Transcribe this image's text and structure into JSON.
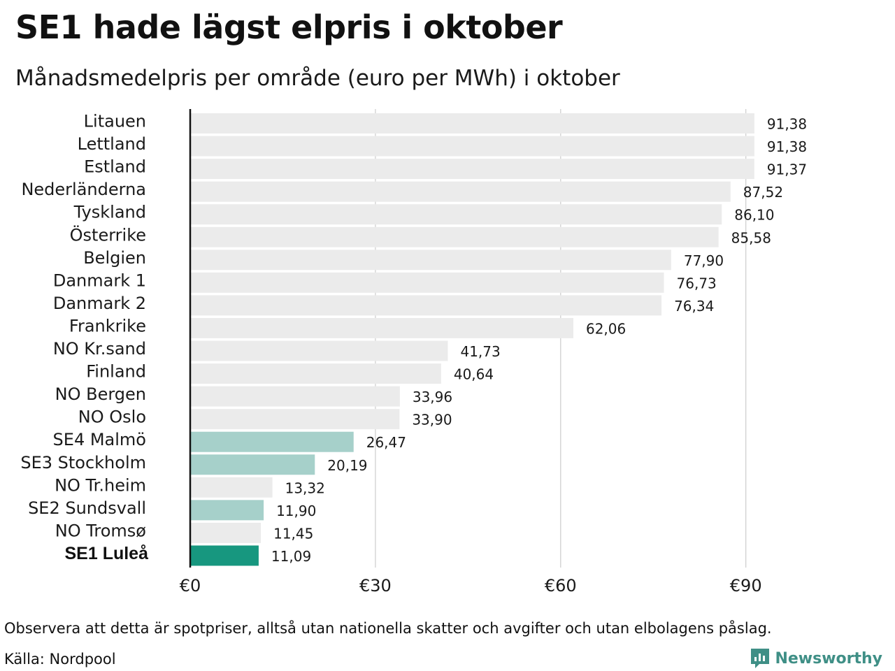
{
  "title": "SE1 hade lägst elpris i oktober",
  "subtitle": "Månadsmedelpris per område (euro per MWh) i oktober",
  "footnote": "Observera att detta är spotpriser, alltså utan nationella skatter och avgifter och utan elbolagens påslag.",
  "source": "Källa: Nordpool",
  "brand": {
    "name": "Newsworthy",
    "icon": "newsworthy-logo-icon",
    "color": "#3f8f86"
  },
  "colors": {
    "default_bar": "#ebebeb",
    "se_bar": "#a6d0ca",
    "highlight_bar": "#17977f",
    "axis": "#111111",
    "grid": "#cccccc"
  },
  "chart_data": {
    "type": "bar",
    "orientation": "horizontal",
    "title": "SE1 hade lägst elpris i oktober",
    "subtitle": "Månadsmedelpris per område (euro per MWh) i oktober",
    "xlim": [
      0,
      100
    ],
    "grid": true,
    "x_ticks": [
      {
        "value": 0,
        "label": "€0"
      },
      {
        "value": 30,
        "label": "€30"
      },
      {
        "value": 60,
        "label": "€60"
      },
      {
        "value": 90,
        "label": "€90"
      }
    ],
    "categories": [
      "Litauen",
      "Lettland",
      "Estland",
      "Nederländerna",
      "Tyskland",
      "Österrike",
      "Belgien",
      "Danmark  1",
      "Danmark  2",
      "Frankrike",
      "NO Kr.sand",
      "Finland",
      "NO Bergen",
      "NO Oslo",
      "SE4  Malmö",
      "SE3  Stockholm",
      "NO Tr.heim",
      "SE2  Sundsvall",
      "NO Tromsø",
      "SE1 Luleå"
    ],
    "values": [
      91.38,
      91.38,
      91.37,
      87.52,
      86.1,
      85.58,
      77.9,
      76.73,
      76.34,
      62.06,
      41.73,
      40.64,
      33.96,
      33.9,
      26.47,
      20.19,
      13.32,
      11.9,
      11.45,
      11.09
    ],
    "value_labels": [
      "91,38",
      "91,38",
      "91,37",
      "87,52",
      "86,10",
      "85,58",
      "77,90",
      "76,73",
      "76,34",
      "62,06",
      "41,73",
      "40,64",
      "33,96",
      "33,90",
      "26,47",
      "20,19",
      "13,32",
      "11,90",
      "11,45",
      "11,09"
    ],
    "bar_group": [
      "default",
      "default",
      "default",
      "default",
      "default",
      "default",
      "default",
      "default",
      "default",
      "default",
      "default",
      "default",
      "default",
      "default",
      "se",
      "se",
      "default",
      "se",
      "default",
      "highlight"
    ],
    "highlight_category": "SE1 Luleå"
  }
}
